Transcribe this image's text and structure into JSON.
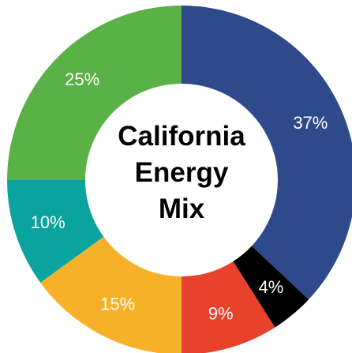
{
  "chart_data": {
    "type": "pie",
    "title": "California Energy Mix",
    "values": [
      37,
      4,
      9,
      15,
      10,
      25
    ],
    "value_labels": [
      "37%",
      "4%",
      "9%",
      "15%",
      "10%",
      "25%"
    ],
    "colors": [
      "#2f4a8b",
      "#000000",
      "#e8412c",
      "#f6b129",
      "#0aa49e",
      "#5ab247"
    ]
  }
}
